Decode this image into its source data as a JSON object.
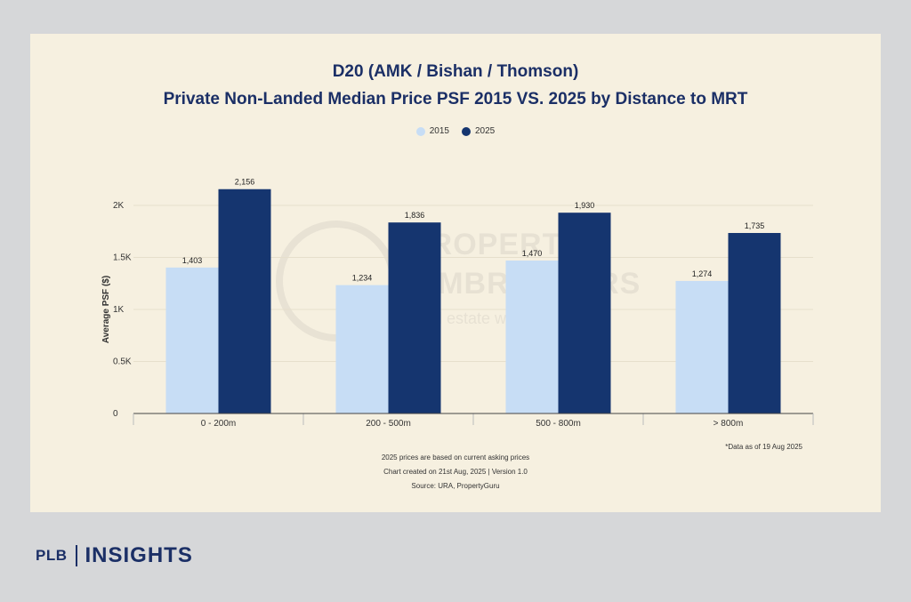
{
  "card": {
    "title_line1": "D20 (AMK / Bishan / Thomson)",
    "title_line2": "Private Non-Landed Median Price PSF 2015 VS. 2025 by Distance to MRT",
    "data_as_of": "*Data as of 19 Aug 2025",
    "footer": [
      "2025 prices are based on current asking prices",
      "Chart created on 21st Aug, 2025 | Version 1.0",
      "Source: URA, PropertyGuru"
    ]
  },
  "watermark": {
    "line1": "PROPERTY",
    "line2": "LIMBROTHERS",
    "line3": "Real estate with"
  },
  "brand": {
    "left": "PLB",
    "right": "INSIGHTS"
  },
  "chart_data": {
    "type": "bar",
    "title": "D20 (AMK / Bishan / Thomson) Private Non-Landed Median Price PSF 2015 VS. 2025 by Distance to MRT",
    "categories": [
      "0 - 200m",
      "200 - 500m",
      "500 - 800m",
      "> 800m"
    ],
    "series": [
      {
        "name": "2015",
        "values": [
          1403,
          1234,
          1470,
          1274
        ],
        "color": "#c7ddf5"
      },
      {
        "name": "2025",
        "values": [
          2156,
          1836,
          1930,
          1735
        ],
        "color": "#15356f"
      }
    ],
    "value_labels": {
      "2015": [
        "1,403",
        "1,234",
        "1,470",
        "1,274"
      ],
      "2025": [
        "2,156",
        "1,836",
        "1,930",
        "1,735"
      ]
    },
    "ylabel": "Average PSF ($)",
    "xlabel": "",
    "ylim": [
      0,
      2000
    ],
    "yticks": [
      0,
      500,
      1000,
      1500,
      2000
    ],
    "ytick_labels": [
      "0",
      "0.5K",
      "1K",
      "1.5K",
      "2K"
    ],
    "legend": "top-center",
    "grid": true
  }
}
